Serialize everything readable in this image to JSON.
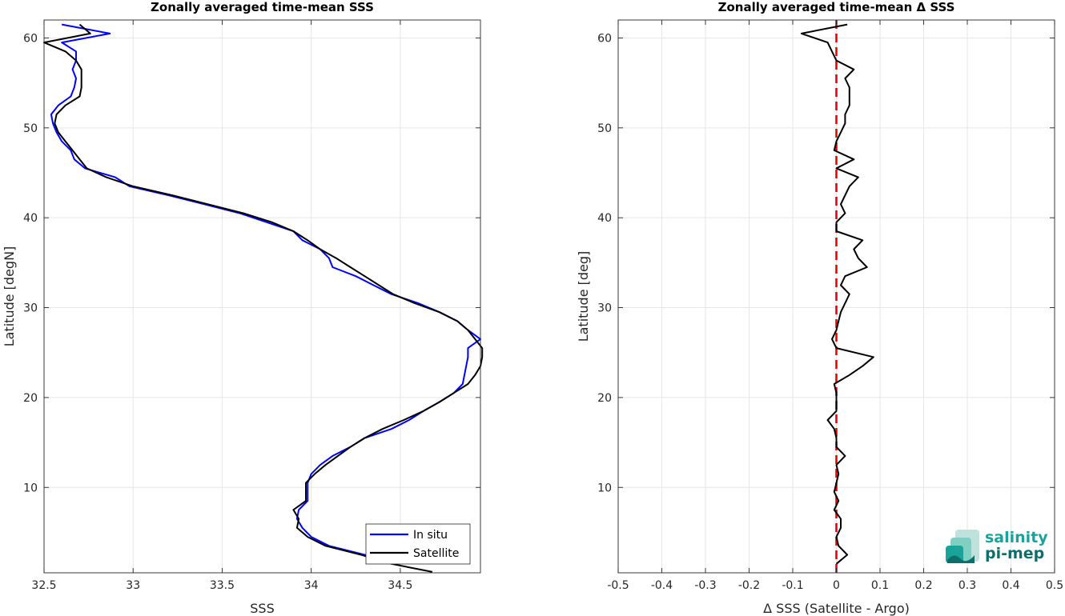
{
  "chart_data": [
    {
      "type": "line",
      "title": "Zonally averaged time-mean SSS",
      "xlabel": "SSS",
      "ylabel": "Latitude [degN]",
      "xlim": [
        32.5,
        34.95
      ],
      "ylim": [
        0.5,
        62
      ],
      "xticks": [
        32.5,
        33,
        33.5,
        34,
        34.5
      ],
      "xtick_labels": [
        "32.5",
        "33",
        "33.5",
        "34",
        "34.5"
      ],
      "yticks": [
        10,
        20,
        30,
        40,
        50,
        60
      ],
      "ytick_labels": [
        "10",
        "20",
        "30",
        "40",
        "50",
        "60"
      ],
      "grid": true,
      "legend_position": "bottom-right",
      "series": [
        {
          "name": "In situ",
          "color": "#0000ff",
          "points": [
            [
              34.5,
              1.5
            ],
            [
              34.3,
              2.5
            ],
            [
              34.1,
              3.5
            ],
            [
              34.0,
              4.5
            ],
            [
              33.95,
              5.5
            ],
            [
              33.92,
              6.5
            ],
            [
              33.93,
              7.5
            ],
            [
              33.98,
              8.5
            ],
            [
              33.98,
              9.5
            ],
            [
              33.98,
              10.5
            ],
            [
              34.0,
              11.5
            ],
            [
              34.05,
              12.5
            ],
            [
              34.12,
              13.5
            ],
            [
              34.22,
              14.5
            ],
            [
              34.3,
              15.5
            ],
            [
              34.45,
              16.5
            ],
            [
              34.55,
              17.5
            ],
            [
              34.63,
              18.5
            ],
            [
              34.72,
              19.5
            ],
            [
              34.8,
              20.5
            ],
            [
              34.85,
              21.5
            ],
            [
              34.86,
              22.5
            ],
            [
              34.87,
              23.5
            ],
            [
              34.88,
              24.5
            ],
            [
              34.88,
              25.5
            ],
            [
              34.95,
              26.5
            ],
            [
              34.88,
              27.5
            ],
            [
              34.82,
              28.5
            ],
            [
              34.72,
              29.5
            ],
            [
              34.6,
              30.5
            ],
            [
              34.45,
              31.5
            ],
            [
              34.35,
              32.5
            ],
            [
              34.25,
              33.5
            ],
            [
              34.12,
              34.5
            ],
            [
              34.1,
              35.5
            ],
            [
              34.05,
              36.5
            ],
            [
              33.95,
              37.5
            ],
            [
              33.9,
              38.5
            ],
            [
              33.75,
              39.5
            ],
            [
              33.6,
              40.5
            ],
            [
              33.4,
              41.5
            ],
            [
              33.2,
              42.5
            ],
            [
              32.98,
              43.5
            ],
            [
              32.9,
              44.5
            ],
            [
              32.73,
              45.5
            ],
            [
              32.67,
              46.5
            ],
            [
              32.65,
              47.5
            ],
            [
              32.6,
              48.5
            ],
            [
              32.57,
              49.5
            ],
            [
              32.55,
              50.5
            ],
            [
              32.54,
              51.5
            ],
            [
              32.58,
              52.5
            ],
            [
              32.65,
              53.5
            ],
            [
              32.67,
              54.5
            ],
            [
              32.68,
              55.5
            ],
            [
              32.66,
              56.5
            ],
            [
              32.68,
              57.5
            ],
            [
              32.68,
              58.5
            ],
            [
              32.6,
              59.5
            ],
            [
              32.87,
              60.5
            ],
            [
              32.6,
              61.5
            ]
          ]
        },
        {
          "name": "Satellite",
          "color": "#000000",
          "points": [
            [
              34.68,
              0.6
            ],
            [
              34.45,
              1.5
            ],
            [
              34.28,
              2.5
            ],
            [
              34.08,
              3.5
            ],
            [
              33.98,
              4.5
            ],
            [
              33.92,
              5.5
            ],
            [
              33.93,
              6.5
            ],
            [
              33.9,
              7.5
            ],
            [
              33.97,
              8.5
            ],
            [
              33.97,
              9.5
            ],
            [
              33.97,
              10.5
            ],
            [
              34.02,
              11.5
            ],
            [
              34.08,
              12.5
            ],
            [
              34.15,
              13.5
            ],
            [
              34.22,
              14.5
            ],
            [
              34.3,
              15.5
            ],
            [
              34.4,
              16.5
            ],
            [
              34.52,
              17.5
            ],
            [
              34.63,
              18.5
            ],
            [
              34.72,
              19.5
            ],
            [
              34.8,
              20.5
            ],
            [
              34.88,
              21.5
            ],
            [
              34.92,
              22.5
            ],
            [
              34.95,
              23.5
            ],
            [
              34.96,
              24.5
            ],
            [
              34.96,
              25.5
            ],
            [
              34.92,
              26.5
            ],
            [
              34.88,
              27.5
            ],
            [
              34.82,
              28.5
            ],
            [
              34.72,
              29.5
            ],
            [
              34.58,
              30.5
            ],
            [
              34.46,
              31.5
            ],
            [
              34.38,
              32.5
            ],
            [
              34.3,
              33.5
            ],
            [
              34.22,
              34.5
            ],
            [
              34.14,
              35.5
            ],
            [
              34.05,
              36.5
            ],
            [
              33.98,
              37.5
            ],
            [
              33.9,
              38.5
            ],
            [
              33.78,
              39.5
            ],
            [
              33.62,
              40.5
            ],
            [
              33.42,
              41.5
            ],
            [
              33.22,
              42.5
            ],
            [
              33.0,
              43.5
            ],
            [
              32.85,
              44.5
            ],
            [
              32.74,
              45.5
            ],
            [
              32.7,
              46.5
            ],
            [
              32.66,
              47.5
            ],
            [
              32.62,
              48.5
            ],
            [
              32.58,
              49.5
            ],
            [
              32.56,
              50.5
            ],
            [
              32.57,
              51.5
            ],
            [
              32.62,
              52.5
            ],
            [
              32.7,
              53.5
            ],
            [
              32.71,
              54.5
            ],
            [
              32.71,
              55.5
            ],
            [
              32.71,
              56.5
            ],
            [
              32.68,
              57.5
            ],
            [
              32.62,
              58.5
            ],
            [
              32.5,
              59.5
            ],
            [
              32.76,
              60.5
            ],
            [
              32.7,
              61.5
            ]
          ]
        }
      ]
    },
    {
      "type": "line",
      "title": "Zonally averaged time-mean Δ SSS",
      "xlabel": "Δ SSS (Satellite - Argo)",
      "ylabel": "Latitude [deg]",
      "xlim": [
        -0.5,
        0.5
      ],
      "ylim": [
        0.5,
        62
      ],
      "xticks": [
        -0.5,
        -0.4,
        -0.3,
        -0.2,
        -0.1,
        0,
        0.1,
        0.2,
        0.3,
        0.4,
        0.5
      ],
      "xtick_labels": [
        "-0.5",
        "-0.4",
        "-0.3",
        "-0.2",
        "-0.1",
        "0",
        "0.1",
        "0.2",
        "0.3",
        "0.4",
        "0.5"
      ],
      "yticks": [
        10,
        20,
        30,
        40,
        50,
        60
      ],
      "ytick_labels": [
        "10",
        "20",
        "30",
        "40",
        "50",
        "60"
      ],
      "grid": true,
      "reference_line": {
        "x": 0,
        "color": "#e8000b",
        "style": "dashed"
      },
      "series": [
        {
          "color": "#000000",
          "points": [
            [
              0.0,
              1.5
            ],
            [
              0.025,
              2.5
            ],
            [
              0.005,
              3.5
            ],
            [
              0.0,
              4.5
            ],
            [
              0.01,
              5.5
            ],
            [
              0.01,
              6.5
            ],
            [
              -0.005,
              7.5
            ],
            [
              0.005,
              8.5
            ],
            [
              -0.005,
              9.5
            ],
            [
              0.0,
              10.5
            ],
            [
              0.005,
              11.5
            ],
            [
              0.0,
              12.5
            ],
            [
              0.02,
              13.5
            ],
            [
              0.0,
              14.5
            ],
            [
              0.0,
              15.5
            ],
            [
              -0.005,
              16.5
            ],
            [
              -0.02,
              17.5
            ],
            [
              0.0,
              18.5
            ],
            [
              0.0,
              19.5
            ],
            [
              0.0,
              20.5
            ],
            [
              -0.005,
              21.5
            ],
            [
              0.03,
              22.5
            ],
            [
              0.06,
              23.5
            ],
            [
              0.085,
              24.5
            ],
            [
              0.0,
              25.5
            ],
            [
              -0.01,
              26.5
            ],
            [
              0.0,
              27.5
            ],
            [
              0.005,
              28.5
            ],
            [
              0.01,
              29.5
            ],
            [
              0.02,
              30.5
            ],
            [
              0.03,
              31.5
            ],
            [
              0.01,
              32.5
            ],
            [
              0.02,
              33.5
            ],
            [
              0.07,
              34.5
            ],
            [
              0.05,
              35.5
            ],
            [
              0.04,
              36.5
            ],
            [
              0.06,
              37.5
            ],
            [
              0.0,
              38.5
            ],
            [
              0.0,
              39.5
            ],
            [
              0.02,
              40.5
            ],
            [
              0.01,
              41.5
            ],
            [
              0.02,
              42.5
            ],
            [
              0.03,
              43.5
            ],
            [
              0.05,
              44.5
            ],
            [
              0.0,
              45.5
            ],
            [
              0.04,
              46.5
            ],
            [
              -0.005,
              47.5
            ],
            [
              0.0,
              48.5
            ],
            [
              0.01,
              49.5
            ],
            [
              0.02,
              50.5
            ],
            [
              0.02,
              51.5
            ],
            [
              0.03,
              52.5
            ],
            [
              0.03,
              53.5
            ],
            [
              0.03,
              54.5
            ],
            [
              0.02,
              55.5
            ],
            [
              0.04,
              56.5
            ],
            [
              0.0,
              57.5
            ],
            [
              -0.01,
              58.5
            ],
            [
              -0.02,
              59.5
            ],
            [
              -0.08,
              60.5
            ],
            [
              0.025,
              61.5
            ]
          ]
        }
      ]
    }
  ],
  "logo": {
    "line1": "salinity",
    "line2": "pi-mep"
  }
}
